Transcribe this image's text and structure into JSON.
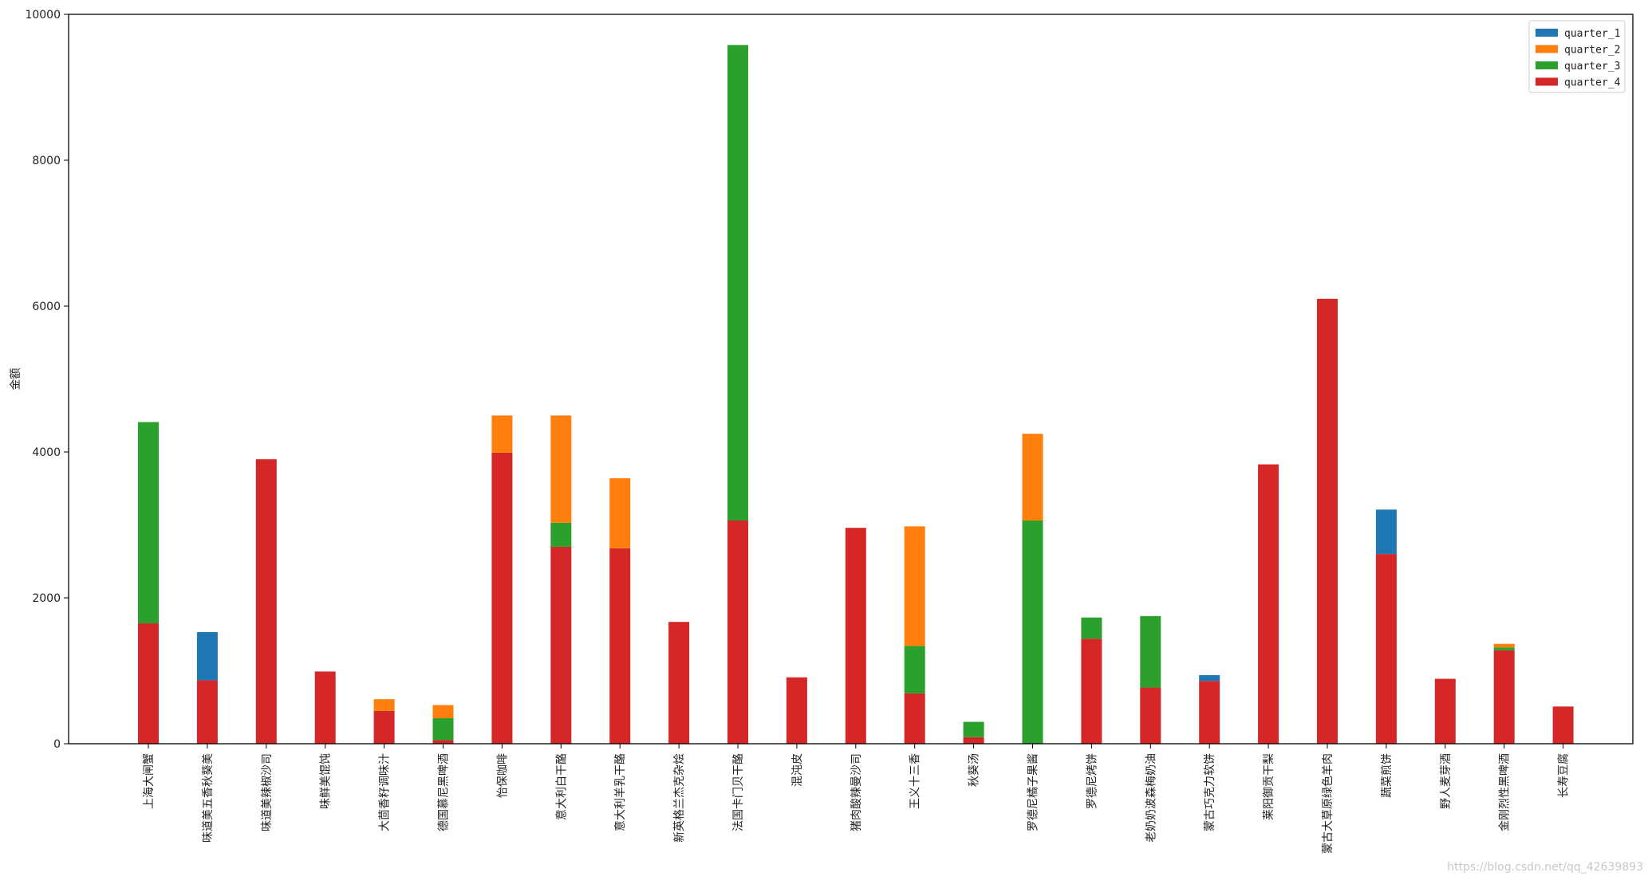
{
  "chart_data": {
    "type": "bar",
    "stacked": true,
    "title": "",
    "xlabel": "",
    "ylabel": "金额",
    "ylim": [
      0,
      10000
    ],
    "yticks": [
      0,
      2000,
      4000,
      6000,
      8000,
      10000
    ],
    "grid": false,
    "legend_position": "top-right",
    "categories": [
      "上海大闸蟹",
      "味道美五香秋葵美",
      "味道美辣椒沙司",
      "味鲜美馄饨",
      "大茴香籽调味汁",
      "德国慕尼黑啤酒",
      "怡保咖啡",
      "意大利白干酪",
      "意大利羊乳干酪",
      "新英格兰杰克杂烩",
      "法国卡门贝干酪",
      "混沌皮",
      "猪肉酸辣曼沙司",
      "王义十三香",
      "秋葵汤",
      "罗德尼橘子果酱",
      "罗德尼烤饼",
      "老奶奶波森梅奶油",
      "蒙古巧克力软饼",
      "莱阳御贡干梨",
      "蒙古大草原绿色羊肉",
      "蔬菜煎饼",
      "野人麦芽酒",
      "金刚烈性黑啤酒",
      "长寿豆腐"
    ],
    "series": [
      {
        "name": "quarter_4",
        "color": "#d62728",
        "values": [
          1650,
          870,
          3900,
          990,
          450,
          50,
          3990,
          2700,
          2680,
          1670,
          3060,
          910,
          2960,
          690,
          90,
          0,
          1440,
          770,
          860,
          3830,
          6100,
          2600,
          890,
          1280,
          510
        ]
      },
      {
        "name": "quarter_3",
        "color": "#2ca02c",
        "values": [
          2760,
          0,
          0,
          0,
          0,
          300,
          0,
          330,
          0,
          0,
          6520,
          0,
          0,
          650,
          210,
          3060,
          290,
          980,
          0,
          0,
          0,
          0,
          0,
          40,
          0
        ]
      },
      {
        "name": "quarter_2",
        "color": "#ff7f0e",
        "values": [
          0,
          0,
          0,
          0,
          160,
          180,
          510,
          1470,
          960,
          0,
          0,
          0,
          0,
          1640,
          0,
          1190,
          0,
          0,
          0,
          0,
          0,
          0,
          0,
          50,
          0
        ]
      },
      {
        "name": "quarter_1",
        "color": "#1f77b4",
        "values": [
          0,
          660,
          0,
          0,
          0,
          0,
          0,
          0,
          0,
          0,
          0,
          0,
          0,
          0,
          0,
          0,
          0,
          0,
          80,
          0,
          0,
          610,
          0,
          0,
          0
        ]
      }
    ],
    "legend_order": [
      "quarter_1",
      "quarter_2",
      "quarter_3",
      "quarter_4"
    ]
  },
  "watermark": "https://blog.csdn.net/qq_42639893"
}
